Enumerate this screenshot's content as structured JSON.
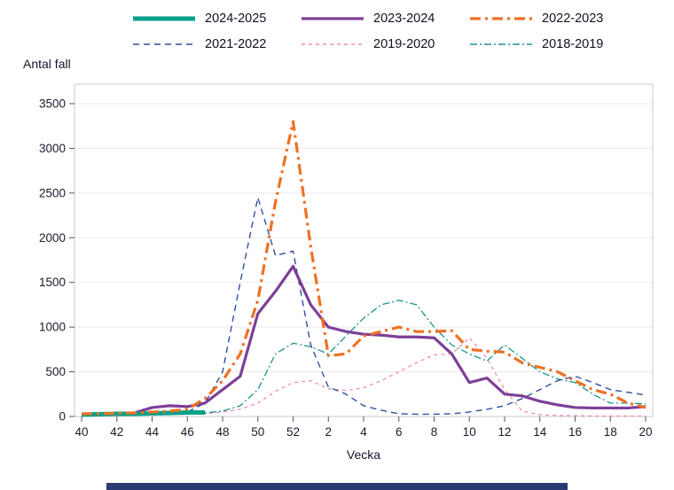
{
  "chart_data": {
    "type": "line",
    "title": "",
    "ylabel": "Antal fall",
    "xlabel": "Vecka",
    "ylim": [
      0,
      3500
    ],
    "yticks": [
      0,
      500,
      1000,
      1500,
      2000,
      2500,
      3000,
      3500
    ],
    "x_tick_labels": [
      "40",
      "42",
      "44",
      "46",
      "48",
      "50",
      "52",
      "2",
      "4",
      "6",
      "8",
      "10",
      "12",
      "14",
      "16",
      "18",
      "20"
    ],
    "weeks": [
      "40",
      "41",
      "42",
      "43",
      "44",
      "45",
      "46",
      "47",
      "48",
      "49",
      "50",
      "51",
      "52",
      "1",
      "2",
      "3",
      "4",
      "5",
      "6",
      "7",
      "8",
      "9",
      "10",
      "11",
      "12",
      "13",
      "14",
      "15",
      "16",
      "17",
      "18",
      "19",
      "20"
    ],
    "grid": "horizontal",
    "legend_position": "top",
    "series": [
      {
        "name": "2024-2025",
        "color": "#00a18a",
        "width": 5,
        "dash": "",
        "z": 6,
        "values": [
          20,
          25,
          30,
          30,
          35,
          40,
          45,
          45,
          null,
          null,
          null,
          null,
          null,
          null,
          null,
          null,
          null,
          null,
          null,
          null,
          null,
          null,
          null,
          null,
          null,
          null,
          null,
          null,
          null,
          null,
          null,
          null,
          null
        ]
      },
      {
        "name": "2023-2024",
        "color": "#7d3f98",
        "width": 3.2,
        "dash": "",
        "z": 5,
        "values": [
          20,
          25,
          30,
          40,
          100,
          120,
          110,
          150,
          300,
          450,
          1150,
          1400,
          1680,
          1250,
          1000,
          950,
          920,
          910,
          890,
          890,
          880,
          700,
          380,
          430,
          250,
          230,
          170,
          130,
          100,
          95,
          95,
          95,
          110
        ]
      },
      {
        "name": "2022-2023",
        "color": "#ee7125",
        "width": 3.2,
        "dash": "12 5 3 5",
        "z": 7,
        "values": [
          30,
          30,
          35,
          40,
          50,
          60,
          80,
          200,
          400,
          700,
          1300,
          2400,
          3300,
          1900,
          680,
          700,
          900,
          950,
          1000,
          950,
          950,
          960,
          750,
          730,
          720,
          600,
          550,
          500,
          400,
          300,
          250,
          150,
          100
        ]
      },
      {
        "name": "2021-2022",
        "color": "#2f4f9e",
        "width": 1.4,
        "dash": "7 5",
        "z": 3,
        "values": [
          10,
          10,
          15,
          20,
          25,
          30,
          50,
          150,
          500,
          1500,
          2450,
          1800,
          1850,
          800,
          330,
          250,
          120,
          70,
          30,
          25,
          25,
          30,
          50,
          80,
          120,
          200,
          300,
          400,
          450,
          380,
          300,
          270,
          240
        ]
      },
      {
        "name": "2019-2020",
        "color": "#ef87b0",
        "width": 1.2,
        "dash": "4 4",
        "z": 1,
        "values": [
          10,
          10,
          10,
          15,
          15,
          20,
          25,
          30,
          50,
          80,
          150,
          280,
          380,
          400,
          310,
          290,
          320,
          400,
          500,
          600,
          690,
          700,
          880,
          650,
          300,
          60,
          20,
          10,
          10,
          5,
          5,
          5,
          5
        ]
      },
      {
        "name": "2018-2019",
        "color": "#1e948b",
        "width": 1.3,
        "dash": "8 3 2 3",
        "z": 2,
        "values": [
          10,
          10,
          15,
          15,
          20,
          25,
          30,
          40,
          60,
          120,
          300,
          700,
          820,
          780,
          700,
          900,
          1100,
          1250,
          1300,
          1250,
          1000,
          800,
          700,
          620,
          800,
          650,
          500,
          420,
          380,
          250,
          150,
          150,
          140
        ]
      }
    ]
  },
  "footer": {
    "bar_color": "#2a3a72"
  }
}
